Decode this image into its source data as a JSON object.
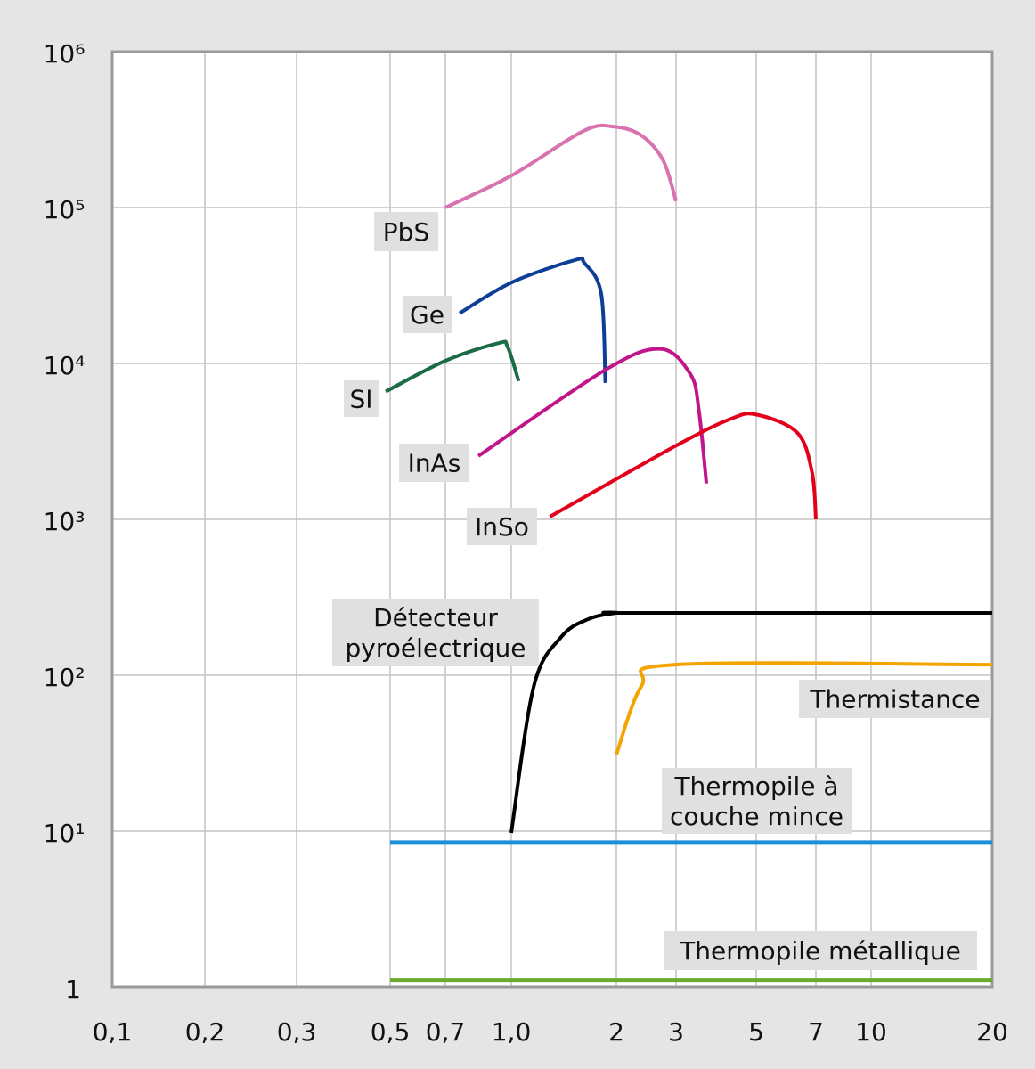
{
  "chart_data": {
    "type": "line",
    "title": "",
    "xlabel": "",
    "ylabel": "",
    "x_scale": "log (irregular tick spacing)",
    "y_scale": "log",
    "xlim": [
      0.1,
      20
    ],
    "ylim": [
      1,
      1000000
    ],
    "grid": true,
    "legend": "inline labels",
    "x_ticks": [
      "0,1",
      "0,2",
      "0,3",
      "0,5",
      "0,7",
      "1,0",
      "2",
      "3",
      "5",
      "7",
      "10",
      "20"
    ],
    "x_tick_values": [
      0.1,
      0.2,
      0.3,
      0.5,
      0.7,
      1.0,
      2,
      3,
      5,
      7,
      10,
      20
    ],
    "y_ticks": [
      "1",
      "10¹",
      "10²",
      "10³",
      "10⁴",
      "10⁵",
      "10⁶"
    ],
    "y_tick_values": [
      1,
      10,
      100,
      1000,
      10000,
      100000,
      1000000
    ],
    "series": [
      {
        "name": "PbS",
        "color": "#d873b0",
        "points": [
          [
            0.7,
            100000
          ],
          [
            1.0,
            160000
          ],
          [
            1.61,
            310000
          ],
          [
            1.97,
            330000
          ],
          [
            2.37,
            290000
          ],
          [
            2.75,
            200000
          ],
          [
            3.0,
            110000
          ]
        ]
      },
      {
        "name": "Ge",
        "color": "#0d3f96",
        "points": [
          [
            0.756,
            21000
          ],
          [
            1.0,
            33000
          ],
          [
            1.52,
            46000
          ],
          [
            1.62,
            44000
          ],
          [
            1.81,
            28000
          ],
          [
            1.86,
            7500
          ]
        ]
      },
      {
        "name": "SI",
        "color": "#1b6b47",
        "points": [
          [
            0.488,
            6600
          ],
          [
            0.7,
            10400
          ],
          [
            0.934,
            13500
          ],
          [
            0.98,
            12800
          ],
          [
            1.05,
            7700
          ]
        ]
      },
      {
        "name": "InAs",
        "color": "#c2158a",
        "points": [
          [
            0.837,
            2550
          ],
          [
            1.86,
            9100
          ],
          [
            2.7,
            12400
          ],
          [
            3.29,
            8500
          ],
          [
            3.47,
            5000
          ],
          [
            3.64,
            1700
          ]
        ]
      },
      {
        "name": "InSo",
        "color": "#e3001b",
        "points": [
          [
            1.29,
            1040
          ],
          [
            3.0,
            2970
          ],
          [
            4.24,
            4400
          ],
          [
            5.0,
            4700
          ],
          [
            6.3,
            3600
          ],
          [
            6.85,
            2000
          ],
          [
            7.0,
            1000
          ]
        ]
      },
      {
        "name": "Détecteur\npyroélectrique",
        "color": "#000000",
        "points": [
          [
            1.0,
            9.75
          ],
          [
            1.16,
            85
          ],
          [
            1.39,
            176
          ],
          [
            1.66,
            229
          ],
          [
            2.0,
            251
          ],
          [
            2.26,
            251
          ],
          [
            20,
            251
          ]
        ]
      },
      {
        "name": "Thermistance",
        "color": "#f5a300",
        "points": [
          [
            2.0,
            31
          ],
          [
            2.37,
            85
          ],
          [
            3.0,
            117
          ],
          [
            20,
            117
          ]
        ]
      },
      {
        "name": "Thermopile à\ncouche mince",
        "color": "#1e8fd6",
        "points": [
          [
            0.5,
            8.5
          ],
          [
            20,
            8.5
          ]
        ]
      },
      {
        "name": "Thermopile métallique",
        "color": "#6aab2e",
        "points": [
          [
            0.5,
            1.11
          ],
          [
            20,
            1.11
          ]
        ]
      }
    ]
  }
}
